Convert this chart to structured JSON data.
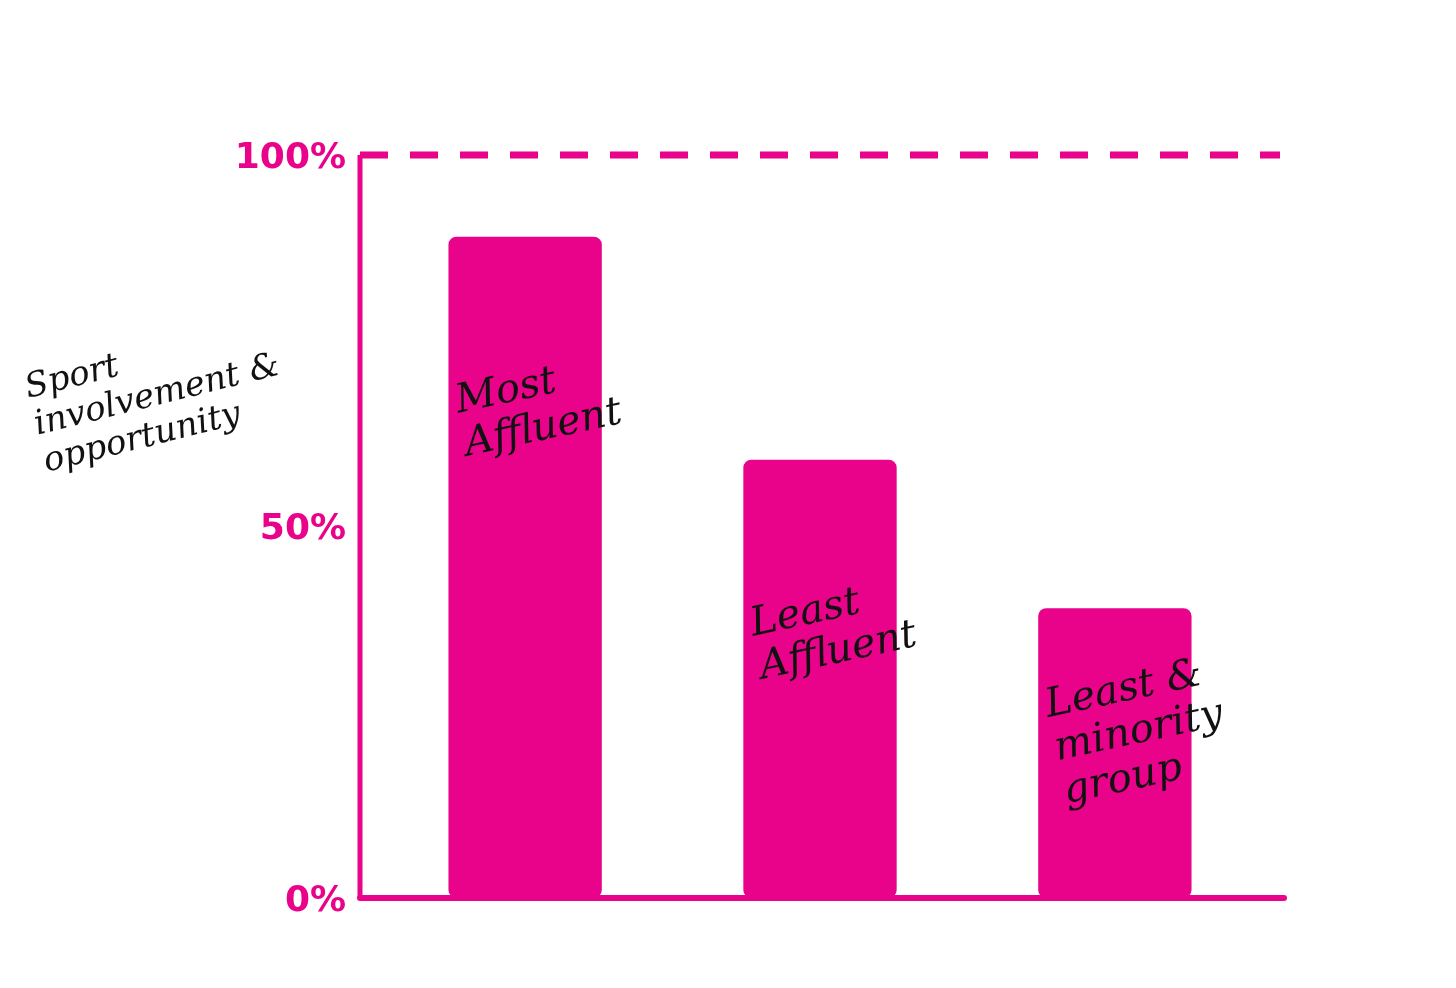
{
  "chart_data": {
    "type": "bar",
    "ylabel": "Sport involvement & opportunity",
    "categories": [
      "Most Affluent",
      "Least Affluent",
      "Least & minority group"
    ],
    "values": [
      89,
      59,
      39
    ],
    "color": "#e8038a",
    "ylim": [
      0,
      100
    ],
    "yticks": [
      {
        "value": 0,
        "label": "0%"
      },
      {
        "value": 50,
        "label": "50%"
      },
      {
        "value": 100,
        "label": "100%"
      }
    ],
    "ref_lines": [
      {
        "axis": "y",
        "value": 100,
        "color": "#e8038a",
        "line_style": "dashed"
      }
    ]
  }
}
